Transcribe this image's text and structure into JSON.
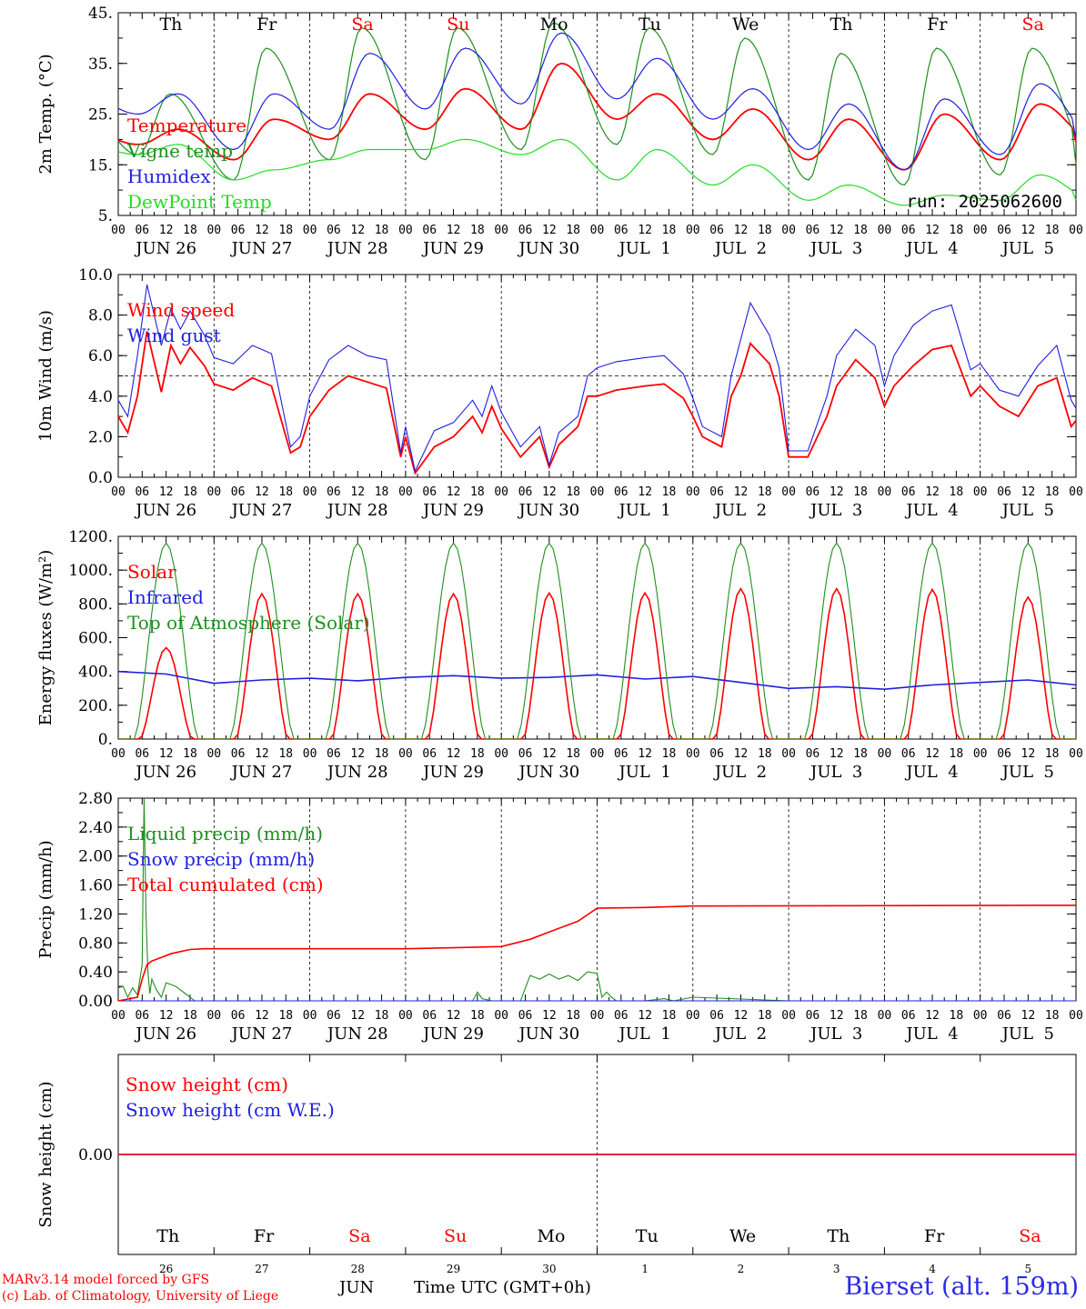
{
  "colors": {
    "red": "#ff0000",
    "green": "#1f8f1f",
    "blue": "#1f1fe0",
    "lightgreen": "#22dd22",
    "weekend_day": "#ff0000",
    "weekday_day": "#000000"
  },
  "hour_labels": [
    "00",
    "06",
    "12",
    "18"
  ],
  "date_labels": [
    "JUN 26",
    "JUN 27",
    "JUN 28",
    "JUN 29",
    "JUN 30",
    "JUL  1",
    "JUL  2",
    "JUL  3",
    "JUL  4",
    "JUL  5"
  ],
  "footer": {
    "credit1": "MARv3.14 model forced by GFS",
    "credit2": "(c) Lab. of Climatology, University of Liege",
    "station": "Bierset (alt. 159m)",
    "month": "JUN",
    "time_axis": "Time UTC (GMT+0h)"
  },
  "chart_data": [
    {
      "type": "line",
      "panel": "temperature",
      "ylabel": "2m Temp. (°C)",
      "ylim": [
        5,
        45
      ],
      "yticks": [
        "5.",
        "15.",
        "25.",
        "35.",
        "45."
      ],
      "day_names": [
        "Th",
        "Fr",
        "Sa",
        "Su",
        "Mo",
        "Tu",
        "We",
        "Th",
        "Fr",
        "Sa"
      ],
      "weekend": [
        false,
        false,
        true,
        true,
        false,
        false,
        false,
        false,
        false,
        true
      ],
      "run_label": "run: 2025062600",
      "x_unit": "days from JUN 26 00 UTC",
      "series": [
        {
          "name": "Temperature",
          "color": "red",
          "tmin": [
            19,
            16,
            20,
            22,
            22,
            24,
            20,
            16,
            14,
            16
          ],
          "tmax": [
            22,
            24,
            29,
            30,
            35,
            29,
            26,
            24,
            25,
            27
          ],
          "end": 19.5
        },
        {
          "name": "Vigne temp",
          "color": "green",
          "tmin": [
            17,
            12,
            16,
            16,
            18,
            19,
            17,
            12,
            11,
            13
          ],
          "tmax": [
            29,
            38,
            42,
            42,
            43,
            42,
            40,
            37,
            38,
            38
          ],
          "end": 15
        },
        {
          "name": "Humidex",
          "color": "blue",
          "tmin": [
            25,
            18,
            22,
            26,
            27,
            28,
            24,
            18,
            14,
            17
          ],
          "tmax": [
            29,
            29,
            37,
            38,
            41,
            36,
            30,
            27,
            28,
            31
          ],
          "end": 20
        },
        {
          "name": "DewPoint Temp",
          "color": "lightgreen",
          "tmin": [
            17,
            12,
            16,
            18,
            17,
            12,
            11,
            8,
            7,
            8
          ],
          "tmax": [
            19,
            14,
            18,
            20,
            20,
            18,
            15,
            11,
            9,
            13
          ],
          "end": 8
        }
      ]
    },
    {
      "type": "line",
      "panel": "wind",
      "ylabel": "10m Wind (m/s)",
      "ylim": [
        0,
        10
      ],
      "yticks": [
        "0.0",
        "2.0",
        "4.0",
        "6.0",
        "8.0",
        "10.0"
      ],
      "reference_line": 5,
      "x_unit": "days from JUN 26 00 UTC",
      "series": [
        {
          "name": "Wind speed",
          "color": "red",
          "x": [
            0,
            0.1,
            0.2,
            0.3,
            0.45,
            0.55,
            0.65,
            0.75,
            0.9,
            1.0,
            1.2,
            1.4,
            1.6,
            1.8,
            1.9,
            2.0,
            2.2,
            2.4,
            2.6,
            2.8,
            2.95,
            3.0,
            3.1,
            3.3,
            3.5,
            3.7,
            3.8,
            3.9,
            4.0,
            4.2,
            4.4,
            4.5,
            4.6,
            4.8,
            4.9,
            5.0,
            5.2,
            5.5,
            5.7,
            5.9,
            6.0,
            6.1,
            6.3,
            6.4,
            6.5,
            6.6,
            6.8,
            6.9,
            7.0,
            7.2,
            7.4,
            7.5,
            7.7,
            7.9,
            8.0,
            8.1,
            8.3,
            8.5,
            8.7,
            8.9,
            9.0,
            9.2,
            9.4,
            9.6,
            9.8,
            9.95,
            10.0
          ],
          "y": [
            3.0,
            2.2,
            4.0,
            7.2,
            4.2,
            6.5,
            5.6,
            6.4,
            5.5,
            4.6,
            4.3,
            4.9,
            4.5,
            1.2,
            1.5,
            3.0,
            4.3,
            5.0,
            4.7,
            4.4,
            1.0,
            2.0,
            0.2,
            1.5,
            2.0,
            3.0,
            2.2,
            3.5,
            2.4,
            1.0,
            2.0,
            0.5,
            1.6,
            2.5,
            4.0,
            4.0,
            4.3,
            4.5,
            4.6,
            3.9,
            3.0,
            2.0,
            1.5,
            4.0,
            5.0,
            6.6,
            5.6,
            4.0,
            1.0,
            1.0,
            3.0,
            4.5,
            5.8,
            4.9,
            3.5,
            4.5,
            5.5,
            6.3,
            6.5,
            4.0,
            4.5,
            3.5,
            3.0,
            4.5,
            4.9,
            2.5,
            2.8
          ]
        },
        {
          "name": "Wind gust",
          "color": "blue",
          "x": [
            0,
            0.1,
            0.2,
            0.3,
            0.45,
            0.55,
            0.65,
            0.75,
            0.9,
            1.0,
            1.2,
            1.4,
            1.6,
            1.8,
            1.9,
            2.0,
            2.2,
            2.4,
            2.6,
            2.8,
            2.95,
            3.0,
            3.1,
            3.3,
            3.5,
            3.7,
            3.8,
            3.9,
            4.0,
            4.2,
            4.4,
            4.5,
            4.6,
            4.8,
            4.9,
            5.0,
            5.2,
            5.5,
            5.7,
            5.9,
            6.0,
            6.1,
            6.3,
            6.4,
            6.5,
            6.6,
            6.8,
            6.9,
            7.0,
            7.2,
            7.4,
            7.5,
            7.7,
            7.9,
            8.0,
            8.1,
            8.3,
            8.5,
            8.7,
            8.9,
            9.0,
            9.2,
            9.4,
            9.6,
            9.8,
            9.95,
            10.0
          ],
          "y": [
            3.8,
            3.0,
            6.0,
            9.5,
            6.5,
            8.3,
            7.3,
            8.2,
            7.0,
            5.9,
            5.6,
            6.5,
            6.1,
            1.5,
            2.0,
            4.0,
            5.8,
            6.5,
            6.0,
            5.8,
            1.2,
            2.5,
            0.3,
            2.3,
            2.7,
            3.8,
            3.0,
            4.5,
            3.2,
            1.5,
            2.5,
            0.6,
            2.2,
            3.0,
            5.0,
            5.4,
            5.7,
            5.9,
            6.0,
            5.1,
            3.9,
            2.5,
            2.0,
            5.0,
            6.8,
            8.6,
            7.0,
            5.4,
            1.3,
            1.3,
            4.0,
            6.0,
            7.3,
            6.5,
            4.5,
            6.0,
            7.5,
            8.2,
            8.5,
            5.3,
            5.6,
            4.3,
            4.0,
            5.5,
            6.5,
            3.8,
            3.4
          ]
        }
      ]
    },
    {
      "type": "line",
      "panel": "energy",
      "ylabel": "Energy fluxes (W/m²)",
      "ylim": [
        0,
        1200
      ],
      "yticks": [
        "0.",
        "200.",
        "400.",
        "600.",
        "800.",
        "1000.",
        "1200."
      ],
      "x_unit": "days from JUN 26 00 UTC",
      "series": [
        {
          "name": "Solar",
          "color": "red",
          "daily_peak": [
            540,
            860,
            860,
            860,
            865,
            865,
            890,
            890,
            885,
            840
          ]
        },
        {
          "name": "Infrared",
          "color": "blue",
          "x": [
            0,
            0.5,
            1.0,
            1.5,
            2.0,
            2.5,
            3.0,
            3.5,
            4.0,
            4.5,
            5.0,
            5.5,
            6.0,
            6.5,
            7.0,
            7.5,
            8.0,
            8.5,
            9.0,
            9.5,
            10.0
          ],
          "y": [
            400,
            385,
            330,
            350,
            360,
            345,
            365,
            375,
            360,
            365,
            380,
            355,
            370,
            335,
            300,
            310,
            295,
            320,
            335,
            350,
            320
          ]
        },
        {
          "name": "Top of Atmosphere (Solar)",
          "color": "green",
          "daily_peak": [
            1160,
            1160,
            1160,
            1160,
            1160,
            1160,
            1160,
            1160,
            1160,
            1160
          ]
        }
      ]
    },
    {
      "type": "line",
      "panel": "precip",
      "ylabel": "Precip (mm/h)",
      "ylim": [
        0,
        2.8
      ],
      "yticks": [
        "0.00",
        "0.40",
        "0.80",
        "1.20",
        "1.60",
        "2.00",
        "2.40",
        "2.80"
      ],
      "x_unit": "days from JUN 26 00 UTC",
      "series": [
        {
          "name": "Liquid precip (mm/h)",
          "color": "green",
          "x": [
            0,
            0.05,
            0.1,
            0.15,
            0.2,
            0.25,
            0.27,
            0.29,
            0.31,
            0.33,
            0.35,
            0.4,
            0.45,
            0.5,
            0.6,
            0.7,
            0.8,
            0.9,
            1.0,
            3.0,
            3.7,
            3.75,
            3.8,
            3.9,
            4.0,
            4.2,
            4.3,
            4.4,
            4.5,
            4.6,
            4.7,
            4.8,
            4.9,
            5.0,
            5.05,
            5.1,
            5.15,
            5.2,
            5.5,
            5.7,
            5.8,
            6.0,
            7.0,
            8.0,
            10.0
          ],
          "y": [
            0.18,
            0.2,
            0.05,
            0.18,
            0.08,
            0.5,
            2.8,
            1.2,
            0.4,
            0.1,
            0.3,
            0.15,
            0.05,
            0.25,
            0.2,
            0.1,
            0,
            0,
            0,
            0,
            0,
            0.12,
            0.03,
            0,
            0,
            0,
            0.35,
            0.3,
            0.37,
            0.3,
            0.35,
            0.28,
            0.4,
            0.38,
            0.05,
            0.12,
            0.05,
            0,
            0,
            0.03,
            0,
            0.05,
            0,
            0,
            0
          ]
        },
        {
          "name": "Snow precip (mm/h)",
          "color": "blue",
          "x": [
            0,
            10
          ],
          "y": [
            0,
            0
          ]
        },
        {
          "name": "Total cumulated (cm)",
          "color": "red",
          "x": [
            0,
            0.2,
            0.25,
            0.3,
            0.35,
            0.45,
            0.55,
            0.65,
            0.75,
            0.9,
            1.0,
            3.0,
            3.7,
            4.0,
            4.3,
            4.5,
            4.8,
            5.0,
            5.5,
            6.0,
            10.0
          ],
          "y": [
            0,
            0.05,
            0.3,
            0.5,
            0.55,
            0.6,
            0.65,
            0.68,
            0.71,
            0.72,
            0.72,
            0.72,
            0.74,
            0.75,
            0.85,
            0.95,
            1.1,
            1.28,
            1.29,
            1.31,
            1.32
          ]
        }
      ]
    },
    {
      "type": "line",
      "panel": "snow",
      "ylabel": "Snow height (cm)",
      "ylim": [
        -1,
        1
      ],
      "yticks": [
        "0.00"
      ],
      "x_unit": "days from JUN 26 00 UTC",
      "day_names": [
        "Th",
        "Fr",
        "Sa",
        "Su",
        "Mo",
        "Tu",
        "We",
        "Th",
        "Fr",
        "Sa"
      ],
      "weekend": [
        false,
        false,
        true,
        true,
        false,
        false,
        false,
        false,
        false,
        true
      ],
      "day_numbers": [
        "26",
        "27",
        "28",
        "29",
        "30",
        "1",
        "2",
        "3",
        "4",
        "5"
      ],
      "series": [
        {
          "name": "Snow height (cm)",
          "color": "red",
          "x": [
            0,
            10
          ],
          "y": [
            0,
            0
          ]
        },
        {
          "name": "Snow height (cm W.E.)",
          "color": "blue",
          "x": [
            0,
            10
          ],
          "y": [
            0,
            0
          ]
        }
      ]
    }
  ]
}
